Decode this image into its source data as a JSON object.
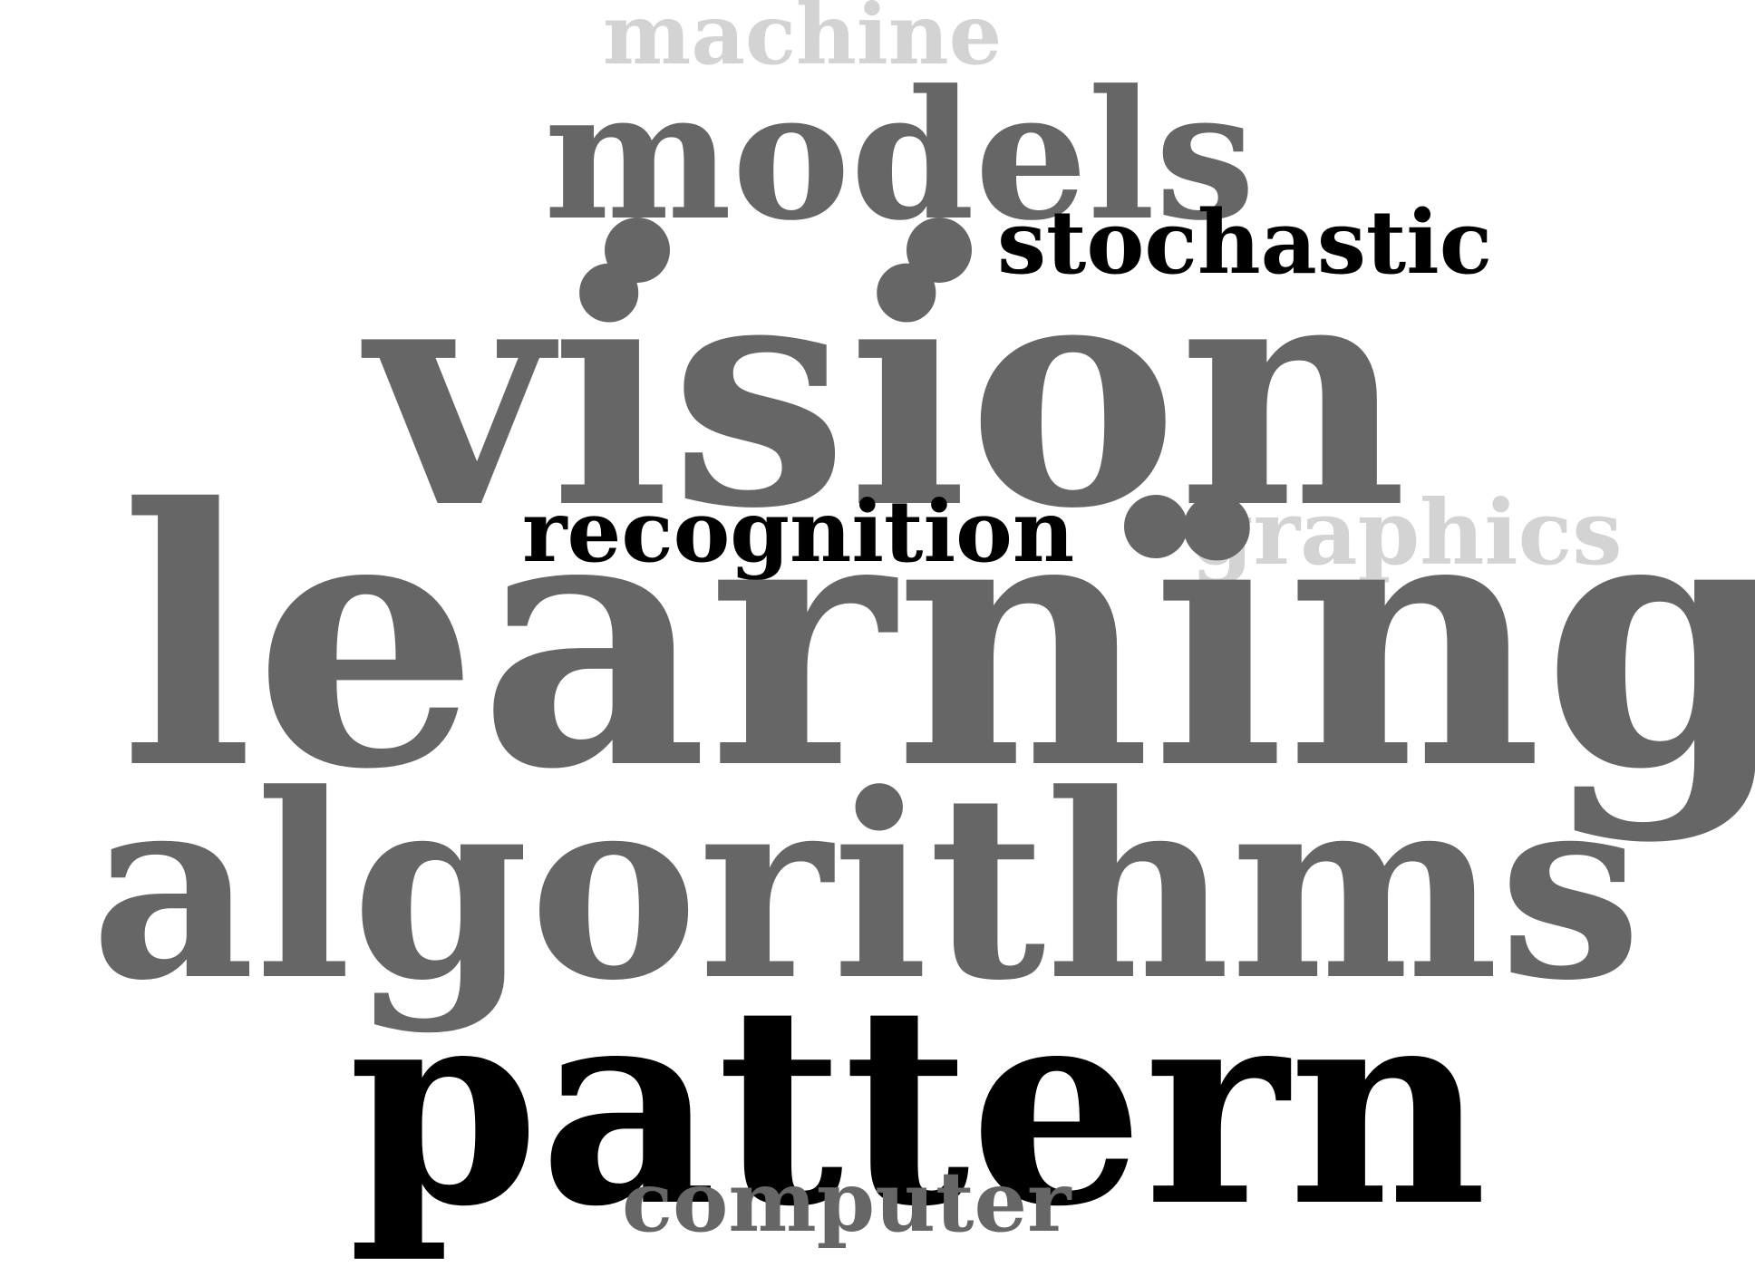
{
  "word_cloud": {
    "words": [
      {
        "text": "machine",
        "shade": "light-gray"
      },
      {
        "text": "models",
        "shade": "gray"
      },
      {
        "text": "stochastic",
        "shade": "black"
      },
      {
        "text": "vision",
        "shade": "gray"
      },
      {
        "text": "recognition",
        "shade": "black"
      },
      {
        "text": "graphics",
        "shade": "light-gray"
      },
      {
        "text": "learning",
        "shade": "gray"
      },
      {
        "text": "algorithms",
        "shade": "gray"
      },
      {
        "text": "pattern",
        "shade": "black"
      },
      {
        "text": "computer",
        "shade": "gray"
      }
    ],
    "colors": {
      "light-gray": "#d3d3d3",
      "gray": "#666666",
      "black": "#000000",
      "background": "#ffffff"
    }
  }
}
